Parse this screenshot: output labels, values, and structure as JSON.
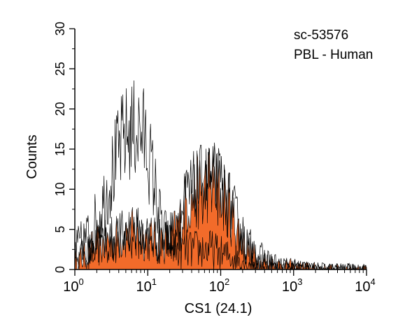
{
  "chart_data": {
    "type": "area",
    "annotation": [
      "sc-53576",
      "PBL - Human"
    ],
    "xlabel": "CS1 (24.1)",
    "ylabel": "Counts",
    "x_scale": "log",
    "xlim": [
      1,
      10000
    ],
    "ylim": [
      0,
      30
    ],
    "x_ticks": [
      {
        "value": 1,
        "base": "10",
        "exp": "0"
      },
      {
        "value": 10,
        "base": "10",
        "exp": "1"
      },
      {
        "value": 100,
        "base": "10",
        "exp": "2"
      },
      {
        "value": 1000,
        "base": "10",
        "exp": "3"
      },
      {
        "value": 10000,
        "base": "10",
        "exp": "4"
      }
    ],
    "y_ticks": [
      0,
      5,
      10,
      15,
      20,
      25,
      30
    ],
    "grid": false,
    "series": [
      {
        "style": "filled",
        "color": "#f26b2a",
        "x": [
          1,
          1.3,
          1.7,
          2.2,
          3,
          4,
          5.5,
          7.5,
          10,
          13,
          17,
          22,
          28,
          35,
          45,
          55,
          70,
          90,
          110,
          140,
          180,
          230,
          300,
          400,
          600,
          900,
          1300,
          2000,
          3000,
          10000
        ],
        "y": [
          1,
          1.5,
          2.5,
          3,
          3.5,
          4,
          4.5,
          4.5,
          4,
          3.5,
          3.5,
          4,
          6,
          8.5,
          9.5,
          10,
          11,
          10,
          9,
          7,
          4.5,
          2.5,
          1.5,
          1,
          0.5,
          0.4,
          0.3,
          0.2,
          0,
          0
        ]
      },
      {
        "style": "outline",
        "color": "#000000",
        "x": [
          1,
          1.3,
          1.7,
          2.2,
          2.8,
          3.5,
          4.5,
          5.5,
          7,
          8.5,
          10,
          12,
          15,
          19,
          24,
          30,
          40,
          55,
          75,
          100,
          150,
          220,
          350,
          600,
          1000,
          2000,
          10000
        ],
        "y": [
          2.5,
          3.5,
          5,
          7,
          10,
          13,
          16,
          17,
          17.5,
          17,
          15,
          11,
          6,
          3.5,
          2.5,
          2.5,
          2.5,
          2.5,
          2.5,
          2,
          1.5,
          1,
          0.5,
          0.3,
          0.2,
          0,
          0
        ]
      },
      {
        "style": "outline",
        "color": "#000000",
        "x": [
          1,
          1.5,
          2,
          3,
          4,
          5.5,
          7.5,
          10,
          13,
          17,
          22,
          28,
          35,
          45,
          55,
          70,
          90,
          110,
          140,
          180,
          230,
          300,
          400,
          600,
          900,
          1300,
          2000,
          10000
        ],
        "y": [
          1.5,
          2,
          3,
          3.5,
          4,
          4.5,
          4.5,
          4,
          3.5,
          3.5,
          4.5,
          6.5,
          9,
          10,
          10.5,
          11,
          10.5,
          9.5,
          7.5,
          5,
          3,
          2,
          1.2,
          0.6,
          0.4,
          0.3,
          0.2,
          0
        ]
      }
    ]
  }
}
